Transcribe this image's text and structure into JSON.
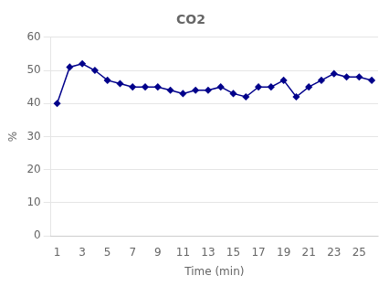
{
  "chart_data": {
    "type": "line",
    "title": "CO2",
    "xlabel": "Time (min)",
    "ylabel": "%",
    "x": [
      1,
      2,
      3,
      4,
      5,
      6,
      7,
      8,
      9,
      10,
      11,
      12,
      13,
      14,
      15,
      16,
      17,
      18,
      19,
      20,
      21,
      22,
      23,
      24,
      25,
      26
    ],
    "values": [
      40,
      51,
      52,
      50,
      47,
      46,
      45,
      45,
      45,
      44,
      43,
      44,
      44,
      45,
      43,
      42,
      45,
      45,
      47,
      42,
      45,
      47,
      49,
      48,
      48,
      47
    ],
    "color": "#00008B",
    "marker": "diamond",
    "xlim": [
      0.5,
      26.5
    ],
    "xticks": [
      1,
      3,
      5,
      7,
      9,
      11,
      13,
      15,
      17,
      19,
      21,
      23,
      25
    ],
    "ylim": [
      0,
      60
    ],
    "yticks": [
      0,
      10,
      20,
      30,
      40,
      50,
      60
    ],
    "grid": "y"
  }
}
